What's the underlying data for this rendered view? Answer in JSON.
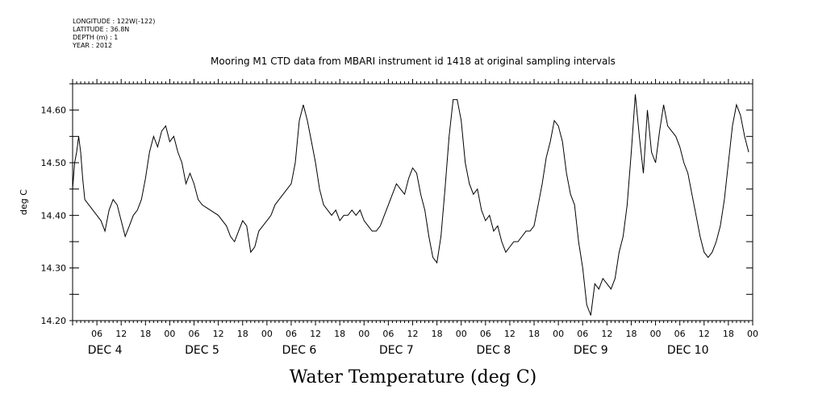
{
  "meta": {
    "longitude": "LONGITUDE : 122W(-122)",
    "latitude": "LATITUDE : 36.8N",
    "depth": "DEPTH (m) : 1",
    "year": "YEAR : 2012"
  },
  "chart_data": {
    "type": "line",
    "title": "Mooring M1 CTD data from MBARI instrument id 1418 at original sampling intervals",
    "xlabel": "Water Temperature (deg C)",
    "ylabel": "deg C",
    "x_unit": "hours from DEC 4 00:00",
    "xlim": [
      -6,
      162
    ],
    "ylim": [
      14.2,
      14.65
    ],
    "yticks": [
      "14.20",
      "14.30",
      "14.40",
      "14.50",
      "14.60"
    ],
    "hour_ticks": [
      "06",
      "12",
      "18",
      "00",
      "06",
      "12",
      "18",
      "00",
      "06",
      "12",
      "18",
      "00",
      "06",
      "12",
      "18",
      "00",
      "06",
      "12",
      "18",
      "00",
      "06",
      "12",
      "18",
      "00",
      "06",
      "12",
      "18",
      "00"
    ],
    "day_labels": [
      "DEC  4",
      "DEC  5",
      "DEC  6",
      "DEC  7",
      "DEC  8",
      "DEC  9",
      "DEC 10"
    ],
    "grid": false,
    "series": [
      {
        "values": [
          [
            -6,
            14.45
          ],
          [
            -5.5,
            14.5
          ],
          [
            -5,
            14.52
          ],
          [
            -4.5,
            14.55
          ],
          [
            -4,
            14.52
          ],
          [
            -3.5,
            14.47
          ],
          [
            -3,
            14.43
          ],
          [
            -2,
            14.42
          ],
          [
            -1,
            14.41
          ],
          [
            0,
            14.4
          ],
          [
            1,
            14.39
          ],
          [
            2,
            14.37
          ],
          [
            3,
            14.41
          ],
          [
            4,
            14.43
          ],
          [
            5,
            14.42
          ],
          [
            6,
            14.39
          ],
          [
            7,
            14.36
          ],
          [
            8,
            14.38
          ],
          [
            9,
            14.4
          ],
          [
            10,
            14.41
          ],
          [
            11,
            14.43
          ],
          [
            12,
            14.47
          ],
          [
            13,
            14.52
          ],
          [
            14,
            14.55
          ],
          [
            15,
            14.53
          ],
          [
            16,
            14.56
          ],
          [
            17,
            14.57
          ],
          [
            18,
            14.54
          ],
          [
            19,
            14.55
          ],
          [
            20,
            14.52
          ],
          [
            21,
            14.5
          ],
          [
            22,
            14.46
          ],
          [
            23,
            14.48
          ],
          [
            24,
            14.46
          ],
          [
            25,
            14.43
          ],
          [
            26,
            14.42
          ],
          [
            28,
            14.41
          ],
          [
            30,
            14.4
          ],
          [
            32,
            14.38
          ],
          [
            33,
            14.36
          ],
          [
            34,
            14.35
          ],
          [
            35,
            14.37
          ],
          [
            36,
            14.39
          ],
          [
            37,
            14.38
          ],
          [
            38,
            14.33
          ],
          [
            39,
            14.34
          ],
          [
            40,
            14.37
          ],
          [
            41,
            14.38
          ],
          [
            42,
            14.39
          ],
          [
            43,
            14.4
          ],
          [
            44,
            14.42
          ],
          [
            45,
            14.43
          ],
          [
            46,
            14.44
          ],
          [
            47,
            14.45
          ],
          [
            48,
            14.46
          ],
          [
            49,
            14.5
          ],
          [
            50,
            14.58
          ],
          [
            51,
            14.61
          ],
          [
            52,
            14.58
          ],
          [
            53,
            14.54
          ],
          [
            54,
            14.5
          ],
          [
            55,
            14.45
          ],
          [
            56,
            14.42
          ],
          [
            57,
            14.41
          ],
          [
            58,
            14.4
          ],
          [
            59,
            14.41
          ],
          [
            60,
            14.39
          ],
          [
            61,
            14.4
          ],
          [
            62,
            14.4
          ],
          [
            63,
            14.41
          ],
          [
            64,
            14.4
          ],
          [
            65,
            14.41
          ],
          [
            66,
            14.39
          ],
          [
            67,
            14.38
          ],
          [
            68,
            14.37
          ],
          [
            69,
            14.37
          ],
          [
            70,
            14.38
          ],
          [
            71,
            14.4
          ],
          [
            72,
            14.42
          ],
          [
            73,
            14.44
          ],
          [
            74,
            14.46
          ],
          [
            75,
            14.45
          ],
          [
            76,
            14.44
          ],
          [
            77,
            14.47
          ],
          [
            78,
            14.49
          ],
          [
            79,
            14.48
          ],
          [
            80,
            14.44
          ],
          [
            81,
            14.41
          ],
          [
            82,
            14.36
          ],
          [
            83,
            14.32
          ],
          [
            84,
            14.31
          ],
          [
            85,
            14.36
          ],
          [
            86,
            14.45
          ],
          [
            87,
            14.55
          ],
          [
            88,
            14.62
          ],
          [
            89,
            14.62
          ],
          [
            90,
            14.58
          ],
          [
            91,
            14.5
          ],
          [
            92,
            14.46
          ],
          [
            93,
            14.44
          ],
          [
            94,
            14.45
          ],
          [
            95,
            14.41
          ],
          [
            96,
            14.39
          ],
          [
            97,
            14.4
          ],
          [
            98,
            14.37
          ],
          [
            99,
            14.38
          ],
          [
            100,
            14.35
          ],
          [
            101,
            14.33
          ],
          [
            102,
            14.34
          ],
          [
            103,
            14.35
          ],
          [
            104,
            14.35
          ],
          [
            105,
            14.36
          ],
          [
            106,
            14.37
          ],
          [
            107,
            14.37
          ],
          [
            108,
            14.38
          ],
          [
            109,
            14.42
          ],
          [
            110,
            14.46
          ],
          [
            111,
            14.51
          ],
          [
            112,
            14.54
          ],
          [
            113,
            14.58
          ],
          [
            114,
            14.57
          ],
          [
            115,
            14.54
          ],
          [
            116,
            14.48
          ],
          [
            117,
            14.44
          ],
          [
            118,
            14.42
          ],
          [
            119,
            14.35
          ],
          [
            120,
            14.3
          ],
          [
            121,
            14.23
          ],
          [
            122,
            14.21
          ],
          [
            123,
            14.27
          ],
          [
            124,
            14.26
          ],
          [
            125,
            14.28
          ],
          [
            126,
            14.27
          ],
          [
            127,
            14.26
          ],
          [
            128,
            14.28
          ],
          [
            129,
            14.33
          ],
          [
            130,
            14.36
          ],
          [
            131,
            14.42
          ],
          [
            132,
            14.52
          ],
          [
            133,
            14.63
          ],
          [
            134,
            14.55
          ],
          [
            135,
            14.48
          ],
          [
            136,
            14.6
          ],
          [
            137,
            14.52
          ],
          [
            138,
            14.5
          ],
          [
            139,
            14.56
          ],
          [
            140,
            14.61
          ],
          [
            141,
            14.57
          ],
          [
            142,
            14.56
          ],
          [
            143,
            14.55
          ],
          [
            144,
            14.53
          ],
          [
            145,
            14.5
          ],
          [
            146,
            14.48
          ],
          [
            147,
            14.44
          ],
          [
            148,
            14.4
          ],
          [
            149,
            14.36
          ],
          [
            150,
            14.33
          ],
          [
            151,
            14.32
          ],
          [
            152,
            14.33
          ],
          [
            153,
            14.35
          ],
          [
            154,
            14.38
          ],
          [
            155,
            14.43
          ],
          [
            156,
            14.5
          ],
          [
            157,
            14.57
          ],
          [
            158,
            14.61
          ],
          [
            159,
            14.59
          ],
          [
            160,
            14.55
          ],
          [
            161,
            14.52
          ]
        ]
      }
    ]
  }
}
